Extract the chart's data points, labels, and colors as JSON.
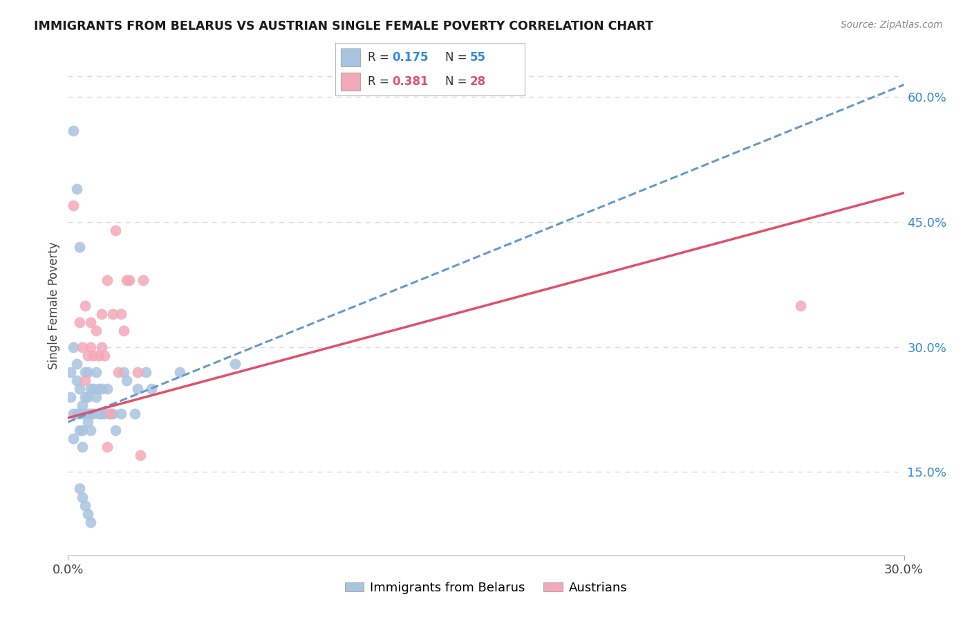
{
  "title": "IMMIGRANTS FROM BELARUS VS AUSTRIAN SINGLE FEMALE POVERTY CORRELATION CHART",
  "source": "Source: ZipAtlas.com",
  "ylabel": "Single Female Poverty",
  "right_yticks": [
    "15.0%",
    "30.0%",
    "45.0%",
    "60.0%"
  ],
  "right_ytick_vals": [
    0.15,
    0.3,
    0.45,
    0.6
  ],
  "xlim": [
    0.0,
    0.3
  ],
  "ylim": [
    0.05,
    0.65
  ],
  "blue_R": 0.175,
  "blue_N": 55,
  "pink_R": 0.381,
  "pink_N": 28,
  "blue_color": "#a8c4e0",
  "pink_color": "#f4a8b8",
  "trendline_blue_color": "#6699cc",
  "trendline_pink_color": "#e0506a",
  "blue_line_x0": 0.0,
  "blue_line_y0": 0.21,
  "blue_line_x1": 0.3,
  "blue_line_y1": 0.615,
  "pink_line_x0": 0.0,
  "pink_line_y0": 0.215,
  "pink_line_x1": 0.3,
  "pink_line_y1": 0.485,
  "blue_points_x": [
    0.002,
    0.003,
    0.004,
    0.001,
    0.001,
    0.002,
    0.002,
    0.002,
    0.003,
    0.003,
    0.003,
    0.004,
    0.004,
    0.004,
    0.005,
    0.005,
    0.005,
    0.005,
    0.006,
    0.006,
    0.006,
    0.007,
    0.007,
    0.007,
    0.007,
    0.008,
    0.008,
    0.008,
    0.009,
    0.009,
    0.01,
    0.01,
    0.011,
    0.011,
    0.012,
    0.012,
    0.013,
    0.014,
    0.015,
    0.016,
    0.017,
    0.019,
    0.02,
    0.021,
    0.024,
    0.025,
    0.028,
    0.03,
    0.04,
    0.06,
    0.004,
    0.005,
    0.006,
    0.007,
    0.008
  ],
  "blue_points_y": [
    0.56,
    0.49,
    0.42,
    0.27,
    0.24,
    0.3,
    0.22,
    0.19,
    0.28,
    0.26,
    0.22,
    0.25,
    0.22,
    0.2,
    0.23,
    0.22,
    0.2,
    0.18,
    0.27,
    0.24,
    0.22,
    0.27,
    0.24,
    0.22,
    0.21,
    0.25,
    0.22,
    0.2,
    0.25,
    0.22,
    0.27,
    0.24,
    0.25,
    0.22,
    0.25,
    0.22,
    0.22,
    0.25,
    0.22,
    0.22,
    0.2,
    0.22,
    0.27,
    0.26,
    0.22,
    0.25,
    0.27,
    0.25,
    0.27,
    0.28,
    0.13,
    0.12,
    0.11,
    0.1,
    0.09
  ],
  "pink_points_x": [
    0.002,
    0.004,
    0.005,
    0.006,
    0.007,
    0.008,
    0.008,
    0.009,
    0.01,
    0.011,
    0.012,
    0.012,
    0.013,
    0.014,
    0.015,
    0.016,
    0.017,
    0.018,
    0.019,
    0.02,
    0.021,
    0.022,
    0.025,
    0.026,
    0.027,
    0.263,
    0.006,
    0.014
  ],
  "pink_points_y": [
    0.47,
    0.33,
    0.3,
    0.35,
    0.29,
    0.33,
    0.3,
    0.29,
    0.32,
    0.29,
    0.34,
    0.3,
    0.29,
    0.38,
    0.22,
    0.34,
    0.44,
    0.27,
    0.34,
    0.32,
    0.38,
    0.38,
    0.27,
    0.17,
    0.38,
    0.35,
    0.26,
    0.18
  ],
  "background_color": "#ffffff",
  "grid_color": "#d8d8e8",
  "legend_R_color_blue": "#3388dd",
  "legend_R_color_pink": "#e0506a",
  "legend_N_color_blue": "#3388dd",
  "legend_N_color_pink": "#e0506a"
}
